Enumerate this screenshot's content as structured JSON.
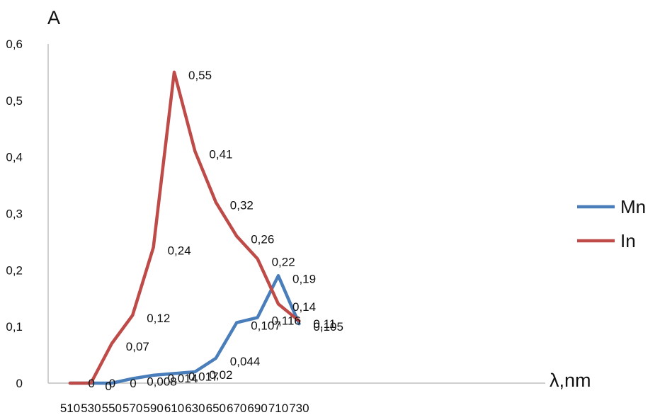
{
  "chart_data": {
    "type": "line",
    "ylabel": "A",
    "xlabel": "λ,nm",
    "categories": [
      "510",
      "530",
      "550",
      "570",
      "590",
      "610",
      "630",
      "650",
      "670",
      "690",
      "710",
      "730"
    ],
    "x": [
      510,
      530,
      550,
      570,
      590,
      610,
      630,
      650,
      670,
      690,
      710,
      730
    ],
    "ylim": [
      0,
      0.6
    ],
    "yticks": [
      {
        "v": 0,
        "label": "0"
      },
      {
        "v": 0.1,
        "label": "0,1"
      },
      {
        "v": 0.2,
        "label": "0,2"
      },
      {
        "v": 0.3,
        "label": "0,3"
      },
      {
        "v": 0.4,
        "label": "0,4"
      },
      {
        "v": 0.5,
        "label": "0,5"
      },
      {
        "v": 0.6,
        "label": "0,6"
      }
    ],
    "grid": false,
    "legend_position": "right",
    "series": [
      {
        "name": "Mn",
        "color": "#4A7EBB",
        "values": [
          0,
          0,
          0,
          0.008,
          0.014,
          0.017,
          0.02,
          0.044,
          0.107,
          0.116,
          0.19,
          0.105
        ],
        "labels": [
          "",
          "",
          "",
          "0,008",
          "0,014",
          "0,017",
          "0,02",
          "0,044",
          "0,107",
          "0,116",
          "0,19",
          "0,105"
        ]
      },
      {
        "name": "In",
        "color": "#BE4B48",
        "values": [
          0,
          0,
          0.07,
          0.12,
          0.24,
          0.55,
          0.41,
          0.32,
          0.26,
          0.22,
          0.14,
          0.11
        ],
        "labels": [
          "",
          "0",
          "0,07",
          "0,12",
          "0,24",
          "0,55",
          "0,41",
          "0,32",
          "0,26",
          "0,22",
          "0,14",
          "0,11"
        ]
      }
    ],
    "extra_labels": [
      {
        "x": 530,
        "text": "0"
      },
      {
        "x": 550,
        "text": "0"
      },
      {
        "x": 570,
        "text": "0"
      }
    ]
  }
}
